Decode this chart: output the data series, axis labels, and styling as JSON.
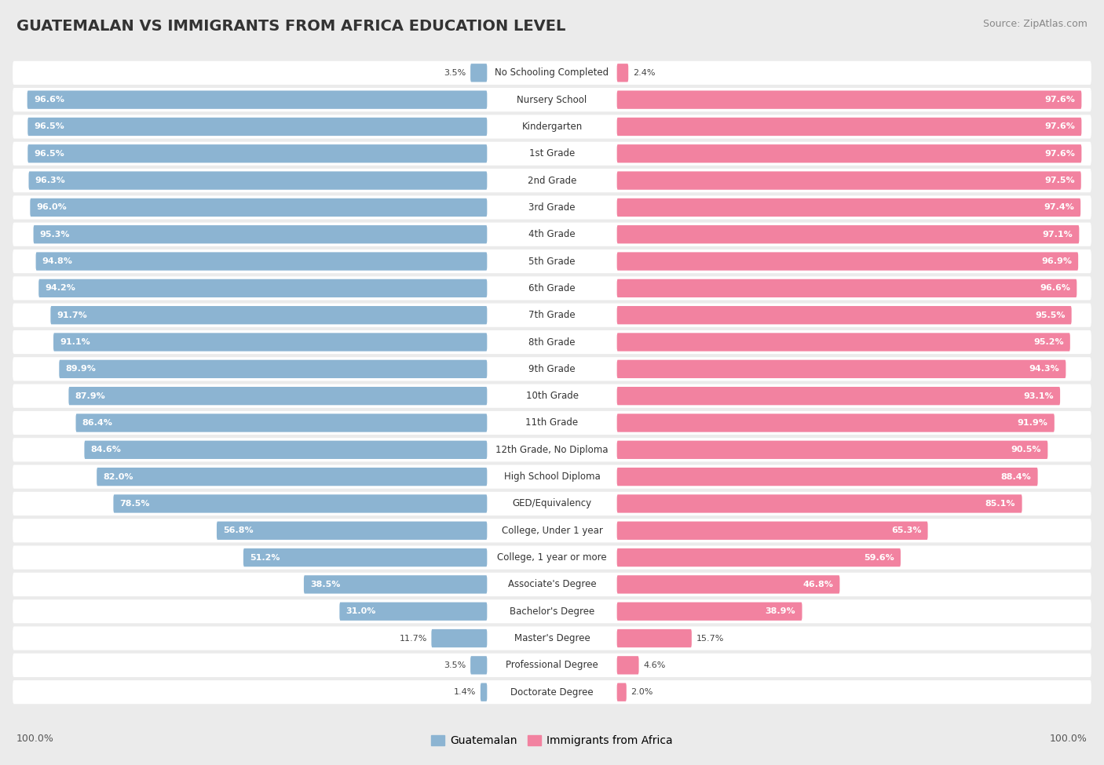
{
  "title": "GUATEMALAN VS IMMIGRANTS FROM AFRICA EDUCATION LEVEL",
  "source": "Source: ZipAtlas.com",
  "categories": [
    "No Schooling Completed",
    "Nursery School",
    "Kindergarten",
    "1st Grade",
    "2nd Grade",
    "3rd Grade",
    "4th Grade",
    "5th Grade",
    "6th Grade",
    "7th Grade",
    "8th Grade",
    "9th Grade",
    "10th Grade",
    "11th Grade",
    "12th Grade, No Diploma",
    "High School Diploma",
    "GED/Equivalency",
    "College, Under 1 year",
    "College, 1 year or more",
    "Associate's Degree",
    "Bachelor's Degree",
    "Master's Degree",
    "Professional Degree",
    "Doctorate Degree"
  ],
  "guatemalan": [
    3.5,
    96.6,
    96.5,
    96.5,
    96.3,
    96.0,
    95.3,
    94.8,
    94.2,
    91.7,
    91.1,
    89.9,
    87.9,
    86.4,
    84.6,
    82.0,
    78.5,
    56.8,
    51.2,
    38.5,
    31.0,
    11.7,
    3.5,
    1.4
  ],
  "africa": [
    2.4,
    97.6,
    97.6,
    97.6,
    97.5,
    97.4,
    97.1,
    96.9,
    96.6,
    95.5,
    95.2,
    94.3,
    93.1,
    91.9,
    90.5,
    88.4,
    85.1,
    65.3,
    59.6,
    46.8,
    38.9,
    15.7,
    4.6,
    2.0
  ],
  "blue_color": "#8cb4d2",
  "pink_color": "#f282a0",
  "bg_color": "#ebebeb",
  "bar_bg_color": "#ffffff",
  "row_sep_color": "#dddddd",
  "legend_blue": "Guatemalan",
  "legend_pink": "Immigrants from Africa",
  "axis_label": "100.0%",
  "label_fontsize": 8.5,
  "value_fontsize": 8.0,
  "title_fontsize": 14,
  "source_fontsize": 9
}
